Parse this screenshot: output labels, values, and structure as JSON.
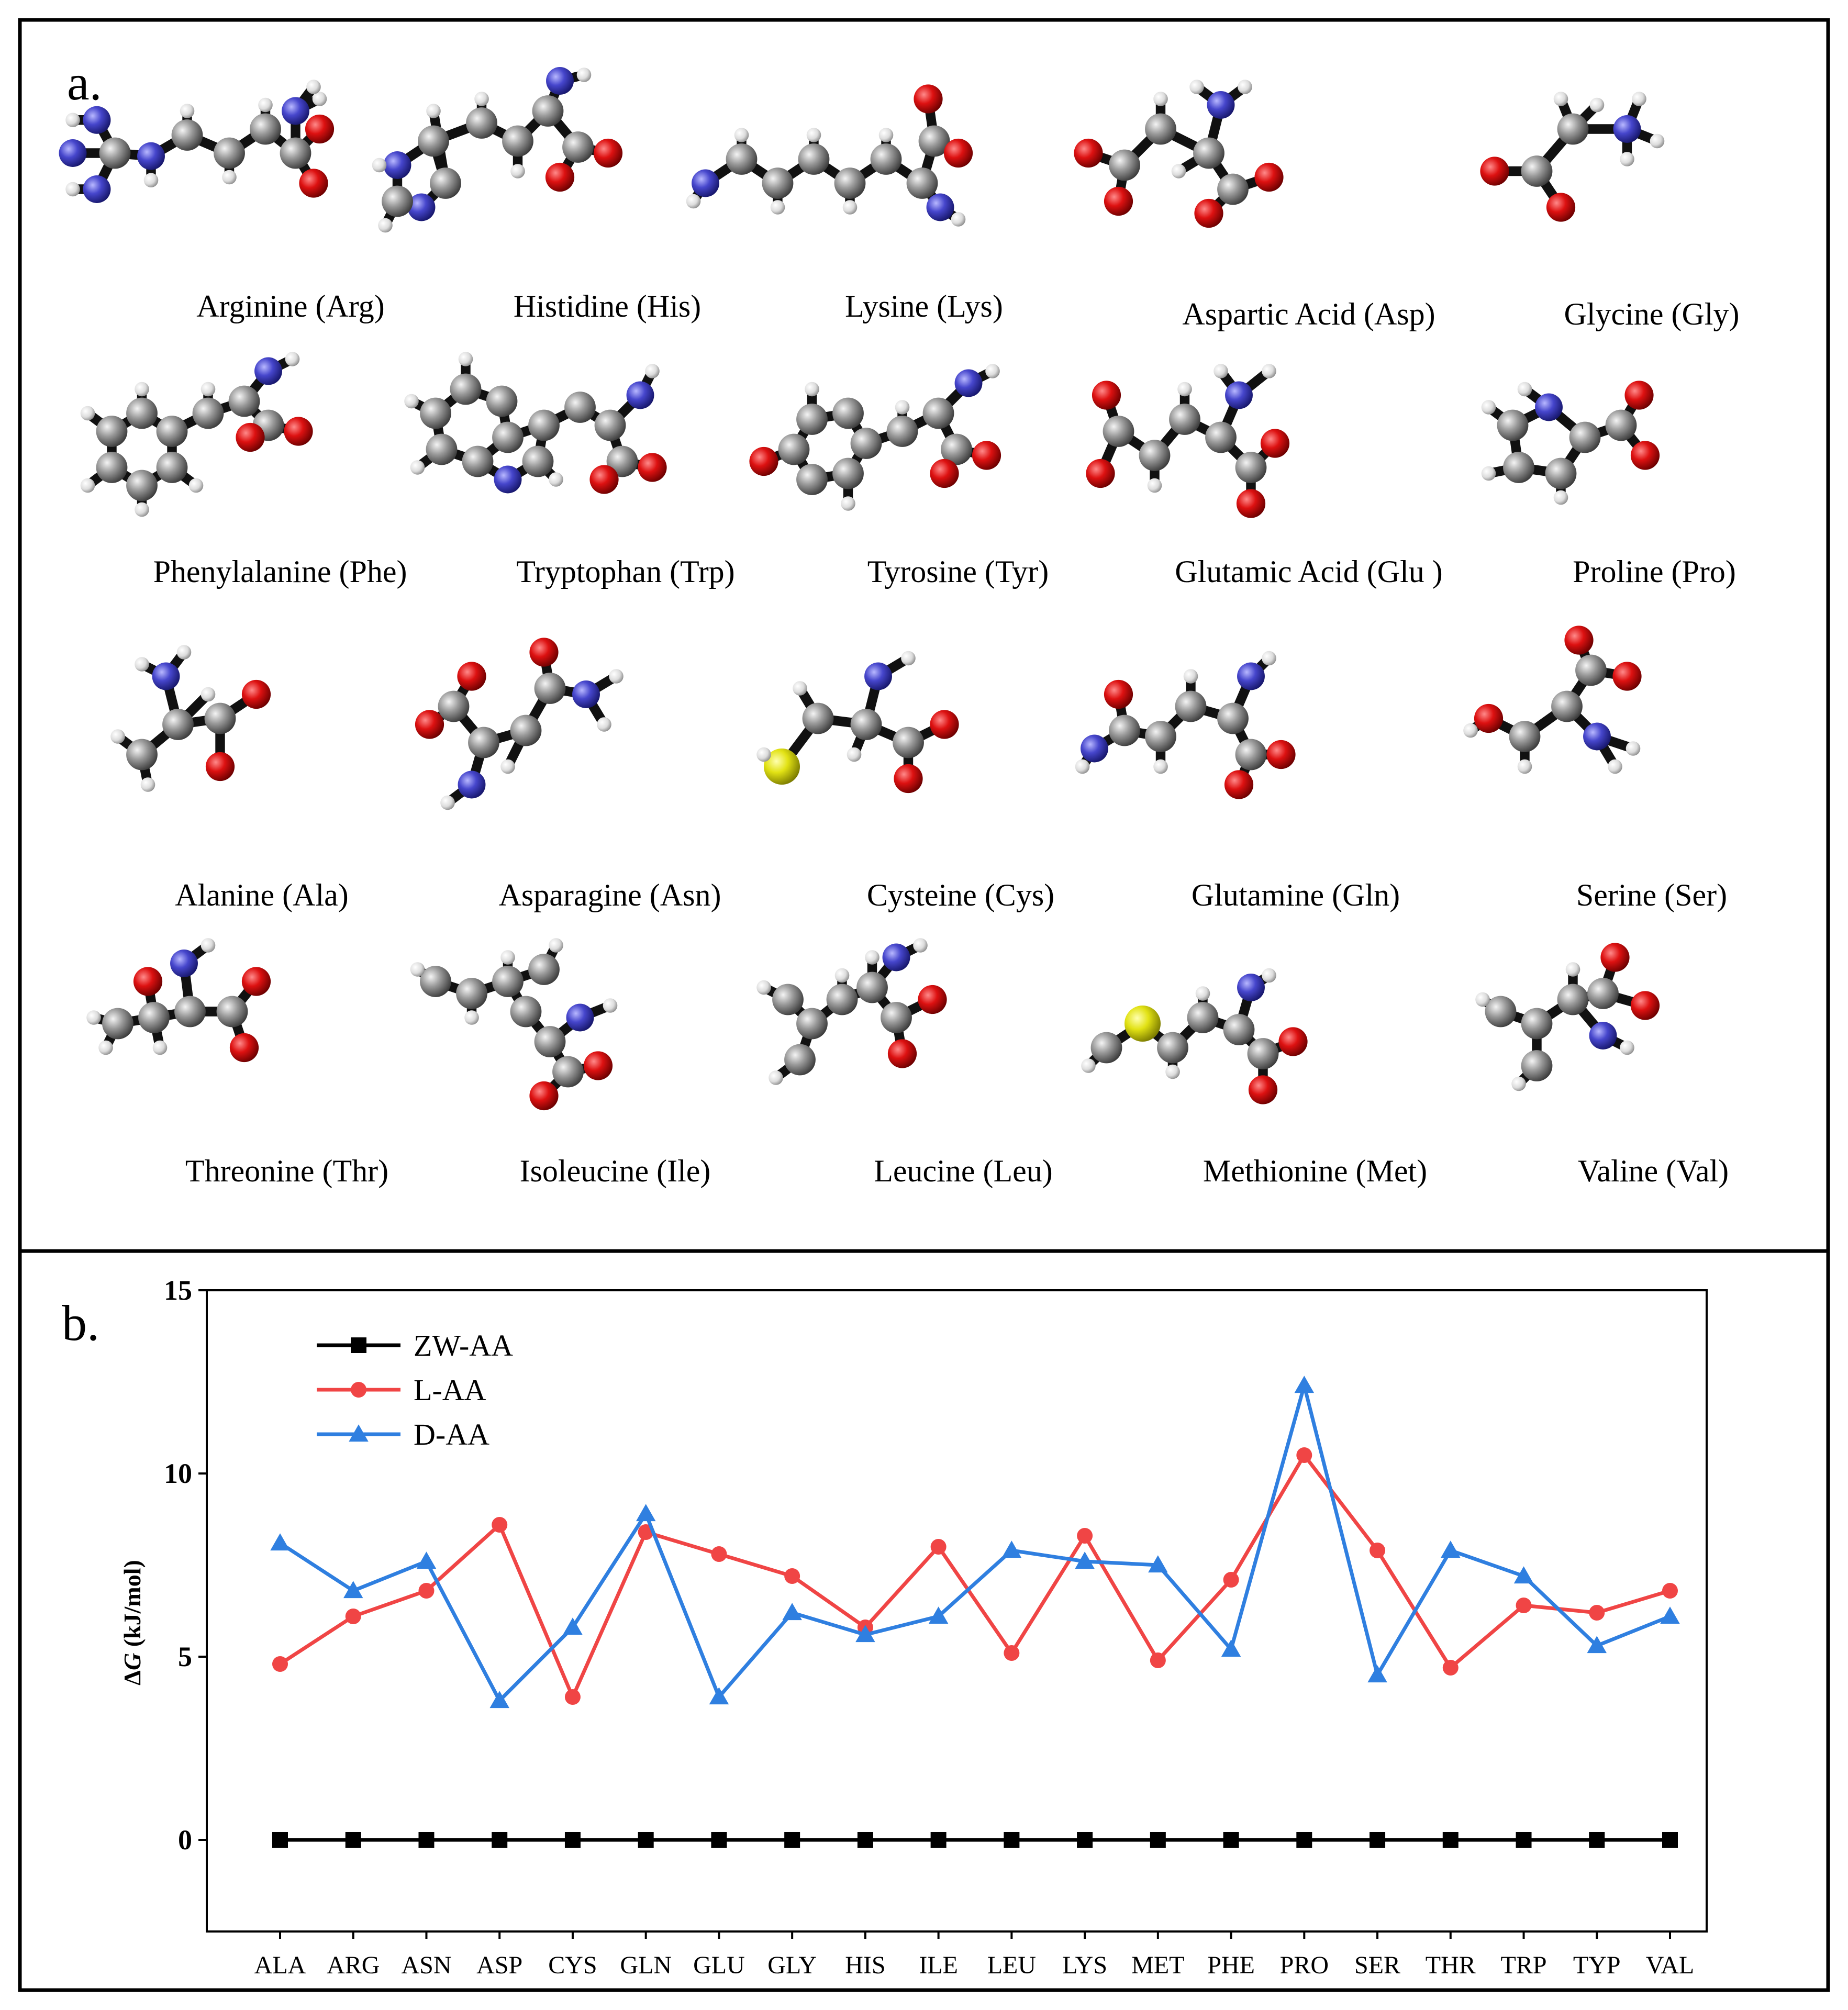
{
  "figure": {
    "panel_a_letter": "a.",
    "panel_b_letter": "b."
  },
  "molecules": [
    {
      "label": "Arginine (Arg)"
    },
    {
      "label": "Histidine (His)"
    },
    {
      "label": "Lysine (Lys)"
    },
    {
      "label": "Aspartic Acid (Asp)"
    },
    {
      "label": "Glycine (Gly)"
    },
    {
      "label": "Phenylalanine (Phe)"
    },
    {
      "label": "Tryptophan (Trp)"
    },
    {
      "label": "Tyrosine (Tyr)"
    },
    {
      "label": "Glutamic Acid (Glu )"
    },
    {
      "label": "Proline (Pro)"
    },
    {
      "label": "Alanine (Ala)"
    },
    {
      "label": "Asparagine (Asn)"
    },
    {
      "label": "Cysteine (Cys)"
    },
    {
      "label": "Glutamine (Gln)"
    },
    {
      "label": "Serine (Ser)"
    },
    {
      "label": "Threonine (Thr)"
    },
    {
      "label": "Isoleucine (Ile)"
    },
    {
      "label": "Leucine (Leu)"
    },
    {
      "label": "Methionine (Met)"
    },
    {
      "label": "Valine (Val)"
    }
  ],
  "atom_colors": {
    "C": "#8a8a8a",
    "H": "#e6e6e6",
    "O": "#cc1111",
    "N": "#4a4ad0",
    "S": "#e0e010"
  },
  "chart_data": {
    "type": "line",
    "title": "",
    "xlabel": "",
    "ylabel": "ΔG (kJ/mol)",
    "ylabel_parts": {
      "delta": "Δ",
      "symbol": "G",
      "unit": " (kJ/mol)"
    },
    "ylim": [
      -2.5,
      15
    ],
    "yticks": [
      0,
      5,
      10,
      15
    ],
    "grid": false,
    "legend_position": "top-left",
    "categories": [
      "ALA",
      "ARG",
      "ASN",
      "ASP",
      "CYS",
      "GLN",
      "GLU",
      "GLY",
      "HIS",
      "ILE",
      "LEU",
      "LYS",
      "MET",
      "PHE",
      "PRO",
      "SER",
      "THR",
      "TRP",
      "TYP",
      "VAL"
    ],
    "series": [
      {
        "name": "ZW-AA",
        "color": "#000000",
        "marker": "square",
        "values": [
          0,
          0,
          0,
          0,
          0,
          0,
          0,
          0,
          0,
          0,
          0,
          0,
          0,
          0,
          0,
          0,
          0,
          0,
          0,
          0
        ]
      },
      {
        "name": "L-AA",
        "color": "#f04545",
        "marker": "circle",
        "values": [
          4.8,
          6.1,
          6.8,
          8.6,
          3.9,
          8.4,
          7.8,
          7.2,
          5.8,
          8.0,
          5.1,
          8.3,
          4.9,
          7.1,
          10.5,
          7.9,
          4.7,
          6.4,
          6.2,
          6.8
        ]
      },
      {
        "name": "D-AA",
        "color": "#2f7fe0",
        "marker": "triangle",
        "values": [
          8.1,
          6.8,
          7.6,
          3.8,
          5.8,
          8.9,
          3.9,
          6.2,
          5.6,
          6.1,
          7.9,
          7.6,
          7.5,
          5.2,
          12.4,
          4.5,
          7.9,
          7.2,
          5.3,
          6.1
        ]
      }
    ]
  }
}
